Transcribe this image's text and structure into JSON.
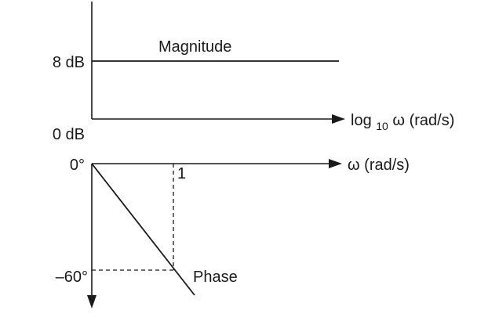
{
  "magnitude_plot": {
    "curve_label": "Magnitude",
    "y_tick_upper": "8 dB",
    "y_tick_lower": "0 dB",
    "x_axis_label": {
      "prefix": "log",
      "subscript": "10",
      "suffix": " ω (rad/s)"
    }
  },
  "phase_plot": {
    "curve_label": "Phase",
    "y_tick_top": "0°",
    "y_tick_bottom": "–60°",
    "x_tick": "1",
    "x_axis_label": "ω (rad/s)"
  }
}
